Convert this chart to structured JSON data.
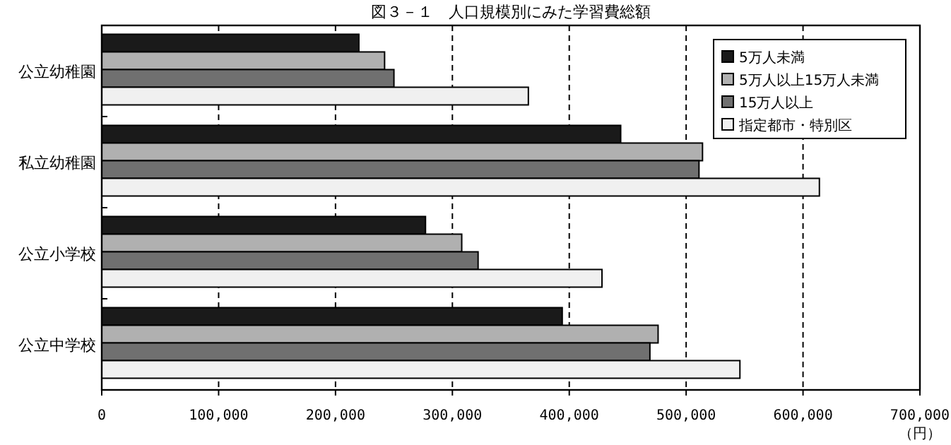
{
  "chart_data": {
    "type": "bar",
    "orientation": "horizontal",
    "title": "図３－１　人口規模別にみた学習費総額",
    "xlabel": "（円）",
    "categories": [
      "公立幼稚園",
      "私立幼稚園",
      "公立小学校",
      "公立中学校"
    ],
    "series": [
      {
        "name": "5万人未満",
        "color": "#1a1a1a",
        "values": [
          220000,
          444000,
          277000,
          394000
        ]
      },
      {
        "name": "5万人以上15万人未満",
        "color": "#b0b0b0",
        "values": [
          242000,
          514000,
          308000,
          476000
        ]
      },
      {
        "name": "15万人以上",
        "color": "#707070",
        "values": [
          250000,
          511000,
          322000,
          469000
        ]
      },
      {
        "name": "指定都市・特別区",
        "color": "#f0f0f0",
        "values": [
          365000,
          614000,
          428000,
          546000
        ]
      }
    ],
    "xlim": [
      0,
      700000
    ],
    "xticks": [
      {
        "value": 0,
        "label": "0"
      },
      {
        "value": 100000,
        "label": "100,000"
      },
      {
        "value": 200000,
        "label": "200,000"
      },
      {
        "value": 300000,
        "label": "300,000"
      },
      {
        "value": 400000,
        "label": "400,000"
      },
      {
        "value": 500000,
        "label": "500,000"
      },
      {
        "value": 600000,
        "label": "600,000"
      },
      {
        "value": 700000,
        "label": "700,000"
      }
    ],
    "grid": "x",
    "legend": "top right"
  }
}
